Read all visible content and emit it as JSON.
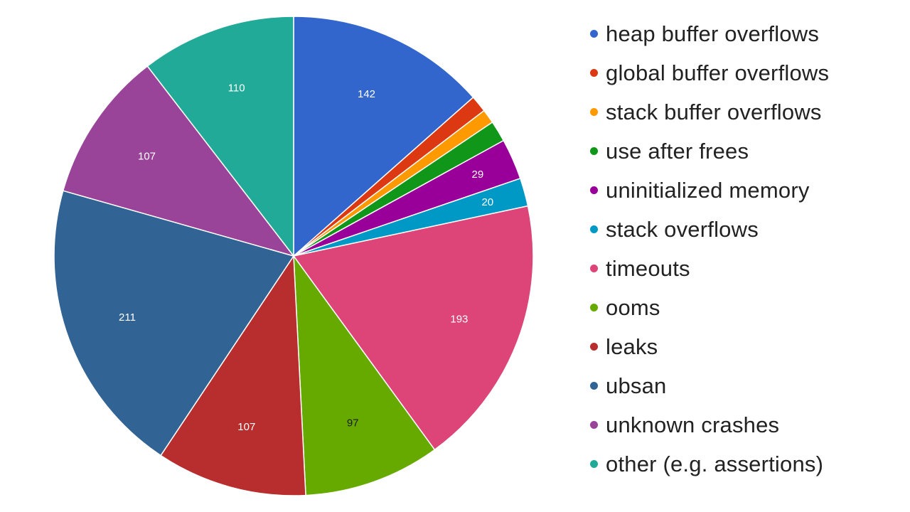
{
  "chart_data": {
    "type": "pie",
    "title": "",
    "legend_position": "right",
    "slices": [
      {
        "name": "heap buffer overflows",
        "value": 142,
        "label": "142",
        "color": "#3366cc"
      },
      {
        "name": "global buffer overflows",
        "value": 12,
        "label": "",
        "color": "#dc3912"
      },
      {
        "name": "stack buffer overflows",
        "value": 10,
        "label": "",
        "color": "#ff9900"
      },
      {
        "name": "use after frees",
        "value": 15,
        "label": "",
        "color": "#109618"
      },
      {
        "name": "uninitialized memory",
        "value": 29,
        "label": "29",
        "color": "#990099"
      },
      {
        "name": "stack overflows",
        "value": 20,
        "label": "20",
        "color": "#0099c6"
      },
      {
        "name": "timeouts",
        "value": 193,
        "label": "193",
        "color": "#dd4477"
      },
      {
        "name": "ooms",
        "value": 97,
        "label": "97",
        "color": "#66aa00"
      },
      {
        "name": "leaks",
        "value": 107,
        "label": "107",
        "color": "#b82e2e"
      },
      {
        "name": "ubsan",
        "value": 211,
        "label": "211",
        "color": "#316395"
      },
      {
        "name": "unknown crashes",
        "value": 107,
        "label": "107",
        "color": "#994499"
      },
      {
        "name": "other (e.g. assertions)",
        "value": 110,
        "label": "110",
        "color": "#22aa99"
      }
    ]
  },
  "label_colors": {
    "on_dark": "#ffffff",
    "on_light": "#1a1a1a"
  }
}
